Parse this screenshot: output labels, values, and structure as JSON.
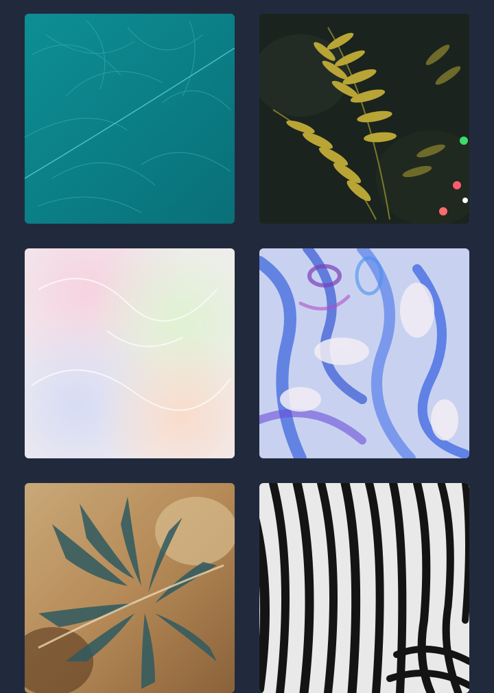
{
  "gallery": {
    "tiles": [
      {
        "subject": "teal-feather"
      },
      {
        "subject": "fern-leaves"
      },
      {
        "subject": "pearl-iridescent"
      },
      {
        "subject": "holographic-liquid"
      },
      {
        "subject": "monstera-leaf"
      },
      {
        "subject": "zebra-stripes"
      }
    ]
  }
}
